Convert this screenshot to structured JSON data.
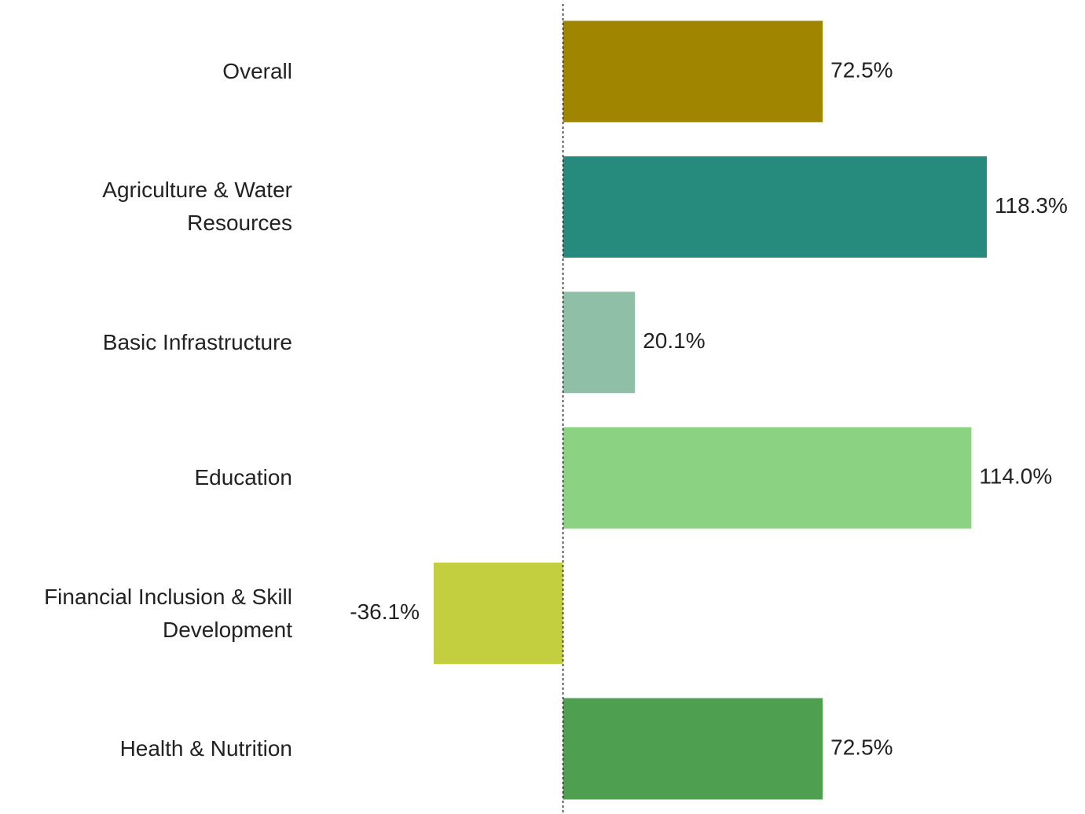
{
  "chart_data": {
    "type": "bar",
    "orientation": "horizontal",
    "categories": [
      "Overall",
      "Agriculture & Water Resources",
      "Basic Infrastructure",
      "Education",
      "Financial Inclusion & Skill Development",
      "Health & Nutrition"
    ],
    "values": [
      72.5,
      118.3,
      20.1,
      114.0,
      -36.1,
      72.5
    ],
    "value_labels": [
      "72.5%",
      "118.3%",
      "20.1%",
      "114.0%",
      "-36.1%",
      "72.5%"
    ],
    "colors": [
      "#a08600",
      "#268a7c",
      "#8fbfa6",
      "#8bd283",
      "#c3cf3e",
      "#4f9f50"
    ]
  }
}
